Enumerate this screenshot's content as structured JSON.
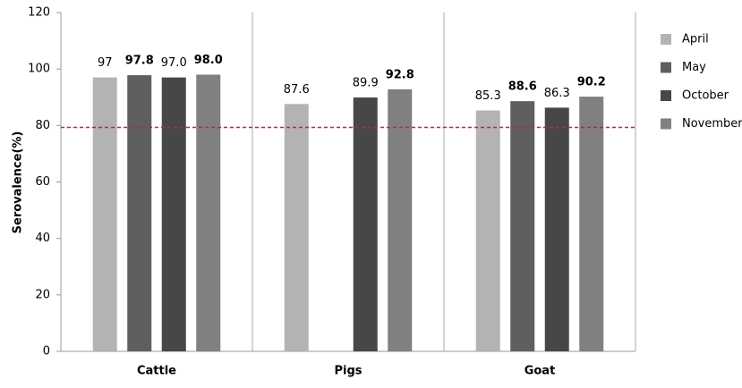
{
  "chart_data": {
    "type": "bar",
    "y_label": "Serovalence(%)",
    "categories": [
      "Cattle",
      "Pigs",
      "Goat"
    ],
    "series": [
      {
        "name": "April",
        "color": "#b3b3b3",
        "values": [
          97,
          87.6,
          85.3
        ],
        "value_labels": [
          "97",
          "87.6",
          "85.3"
        ],
        "label_bold": false
      },
      {
        "name": "May",
        "color": "#5f5f5f",
        "values": [
          97.8,
          null,
          88.6
        ],
        "value_labels": [
          "97.8",
          null,
          "88.6"
        ],
        "label_bold": true
      },
      {
        "name": "October",
        "color": "#474747",
        "values": [
          97.0,
          89.9,
          86.3
        ],
        "value_labels": [
          "97.0",
          "89.9",
          "86.3"
        ],
        "label_bold": false
      },
      {
        "name": "November",
        "color": "#808080",
        "values": [
          98.0,
          92.8,
          90.2
        ],
        "value_labels": [
          "98.0",
          "92.8",
          "90.2"
        ],
        "label_bold": true
      }
    ],
    "reference_line": {
      "value": 79.3,
      "color": "#e31a1c"
    },
    "ylim": [
      0,
      120
    ],
    "yticks": [
      0,
      20,
      40,
      60,
      80,
      100,
      120
    ],
    "legend": "right"
  }
}
